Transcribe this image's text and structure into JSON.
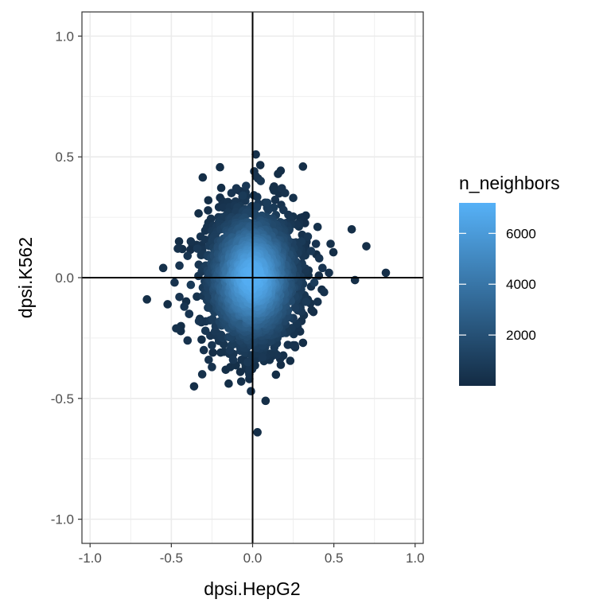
{
  "chart_data": {
    "type": "scatter",
    "title": "",
    "xlabel": "dpsi.HepG2",
    "ylabel": "dpsi.K562",
    "xlim": [
      -1.05,
      1.05
    ],
    "ylim": [
      -1.1,
      1.1
    ],
    "x_ticks": [
      -1.0,
      -0.5,
      0.0,
      0.5,
      1.0
    ],
    "x_tick_labels": [
      "-1.0",
      "-0.5",
      "0.0",
      "0.5",
      "1.0"
    ],
    "y_ticks": [
      -1.0,
      -0.5,
      0.0,
      0.5,
      1.0
    ],
    "y_tick_labels": [
      "-1.0",
      "-0.5",
      "0.0",
      "0.5",
      "1.0"
    ],
    "grid": true,
    "reference_lines": {
      "x": 0,
      "y": 0
    },
    "legend": {
      "title": "n_neighbors",
      "placement": "right",
      "type": "colorbar",
      "range": [
        0,
        7200
      ],
      "breaks": [
        2000,
        4000,
        6000
      ],
      "break_labels": [
        "2000",
        "4000",
        "6000"
      ],
      "low_color": "#132B43",
      "high_color": "#56B1F7"
    },
    "points": [
      {
        "x": 0.02,
        "y": 0.51,
        "n": 300
      },
      {
        "x": 0.31,
        "y": 0.46,
        "n": 200
      },
      {
        "x": 0.01,
        "y": 0.44,
        "n": 400
      },
      {
        "x": 0.02,
        "y": 0.42,
        "n": 500
      },
      {
        "x": -0.04,
        "y": 0.38,
        "n": 700
      },
      {
        "x": 0.05,
        "y": 0.4,
        "n": 600
      },
      {
        "x": -0.1,
        "y": 0.37,
        "n": 500
      },
      {
        "x": -0.13,
        "y": 0.35,
        "n": 500
      },
      {
        "x": 0.18,
        "y": 0.37,
        "n": 400
      },
      {
        "x": 0.2,
        "y": 0.35,
        "n": 400
      },
      {
        "x": 0.25,
        "y": 0.33,
        "n": 300
      },
      {
        "x": -0.06,
        "y": 0.34,
        "n": 800
      },
      {
        "x": 0.09,
        "y": 0.31,
        "n": 900
      },
      {
        "x": -0.18,
        "y": 0.29,
        "n": 500
      },
      {
        "x": -0.15,
        "y": 0.27,
        "n": 700
      },
      {
        "x": 0.13,
        "y": 0.29,
        "n": 800
      },
      {
        "x": 0.19,
        "y": 0.28,
        "n": 600
      },
      {
        "x": 0.22,
        "y": 0.26,
        "n": 500
      },
      {
        "x": -0.21,
        "y": 0.25,
        "n": 500
      },
      {
        "x": -0.28,
        "y": 0.21,
        "n": 400
      },
      {
        "x": 0.27,
        "y": 0.22,
        "n": 500
      },
      {
        "x": 0.4,
        "y": 0.21,
        "n": 300
      },
      {
        "x": 0.61,
        "y": 0.2,
        "n": 200
      },
      {
        "x": -0.32,
        "y": 0.17,
        "n": 500
      },
      {
        "x": -0.25,
        "y": 0.17,
        "n": 700
      },
      {
        "x": 0.34,
        "y": 0.17,
        "n": 600
      },
      {
        "x": -0.38,
        "y": 0.15,
        "n": 400
      },
      {
        "x": 0.3,
        "y": 0.15,
        "n": 800
      },
      {
        "x": 0.39,
        "y": 0.14,
        "n": 500
      },
      {
        "x": 0.7,
        "y": 0.13,
        "n": 200
      },
      {
        "x": -0.46,
        "y": 0.12,
        "n": 300
      },
      {
        "x": 0.48,
        "y": 0.14,
        "n": 300
      },
      {
        "x": -0.34,
        "y": 0.12,
        "n": 700
      },
      {
        "x": 0.36,
        "y": 0.11,
        "n": 700
      },
      {
        "x": -0.4,
        "y": 0.09,
        "n": 500
      },
      {
        "x": 0.41,
        "y": 0.08,
        "n": 500
      },
      {
        "x": -0.45,
        "y": 0.05,
        "n": 500
      },
      {
        "x": -0.55,
        "y": 0.04,
        "n": 300
      },
      {
        "x": 0.43,
        "y": 0.04,
        "n": 500
      },
      {
        "x": 0.47,
        "y": 0.02,
        "n": 400
      },
      {
        "x": 0.82,
        "y": 0.02,
        "n": 200
      },
      {
        "x": 0.63,
        "y": -0.01,
        "n": 200
      },
      {
        "x": -0.48,
        "y": -0.02,
        "n": 400
      },
      {
        "x": -0.38,
        "y": -0.03,
        "n": 800
      },
      {
        "x": 0.38,
        "y": -0.02,
        "n": 900
      },
      {
        "x": 0.44,
        "y": -0.06,
        "n": 400
      },
      {
        "x": -0.65,
        "y": -0.09,
        "n": 200
      },
      {
        "x": -0.45,
        "y": -0.08,
        "n": 500
      },
      {
        "x": 0.4,
        "y": -0.1,
        "n": 400
      },
      {
        "x": -0.42,
        "y": -0.12,
        "n": 500
      },
      {
        "x": 0.33,
        "y": -0.1,
        "n": 800
      },
      {
        "x": -0.39,
        "y": -0.15,
        "n": 500
      },
      {
        "x": 0.3,
        "y": -0.14,
        "n": 700
      },
      {
        "x": -0.33,
        "y": -0.18,
        "n": 600
      },
      {
        "x": 0.25,
        "y": -0.17,
        "n": 700
      },
      {
        "x": -0.47,
        "y": -0.21,
        "n": 300
      },
      {
        "x": -0.29,
        "y": -0.22,
        "n": 600
      },
      {
        "x": 0.12,
        "y": -0.2,
        "n": 900
      },
      {
        "x": 0.18,
        "y": -0.19,
        "n": 800
      },
      {
        "x": 0.22,
        "y": -0.22,
        "n": 600
      },
      {
        "x": -0.26,
        "y": -0.24,
        "n": 500
      },
      {
        "x": -0.18,
        "y": -0.25,
        "n": 700
      },
      {
        "x": 0.1,
        "y": -0.24,
        "n": 800
      },
      {
        "x": 0.09,
        "y": -0.27,
        "n": 700
      },
      {
        "x": -0.4,
        "y": -0.26,
        "n": 400
      },
      {
        "x": -0.25,
        "y": -0.28,
        "n": 500
      },
      {
        "x": -0.08,
        "y": -0.27,
        "n": 900
      },
      {
        "x": 0.02,
        "y": -0.28,
        "n": 1000
      },
      {
        "x": 0.26,
        "y": -0.28,
        "n": 400
      },
      {
        "x": -0.3,
        "y": -0.3,
        "n": 400
      },
      {
        "x": -0.14,
        "y": -0.3,
        "n": 700
      },
      {
        "x": -0.05,
        "y": -0.31,
        "n": 800
      },
      {
        "x": 0.06,
        "y": -0.33,
        "n": 700
      },
      {
        "x": -0.27,
        "y": -0.34,
        "n": 400
      },
      {
        "x": 0.15,
        "y": -0.32,
        "n": 500
      },
      {
        "x": -0.12,
        "y": -0.34,
        "n": 600
      },
      {
        "x": -0.03,
        "y": -0.35,
        "n": 700
      },
      {
        "x": 0.25,
        "y": -0.28,
        "n": 300
      },
      {
        "x": -0.25,
        "y": -0.37,
        "n": 400
      },
      {
        "x": -0.02,
        "y": -0.38,
        "n": 500
      },
      {
        "x": -0.02,
        "y": -0.4,
        "n": 400
      },
      {
        "x": -0.31,
        "y": -0.4,
        "n": 300
      },
      {
        "x": -0.07,
        "y": -0.43,
        "n": 300
      },
      {
        "x": -0.36,
        "y": -0.45,
        "n": 200
      },
      {
        "x": -0.01,
        "y": -0.47,
        "n": 300
      },
      {
        "x": 0.08,
        "y": -0.51,
        "n": 200
      },
      {
        "x": 0.03,
        "y": -0.64,
        "n": 200
      }
    ],
    "core_density": {
      "center_x": 0.0,
      "center_y": 0.0,
      "spread_x": 0.13,
      "spread_y": 0.13,
      "count": 2600,
      "max_n": 7200
    }
  }
}
